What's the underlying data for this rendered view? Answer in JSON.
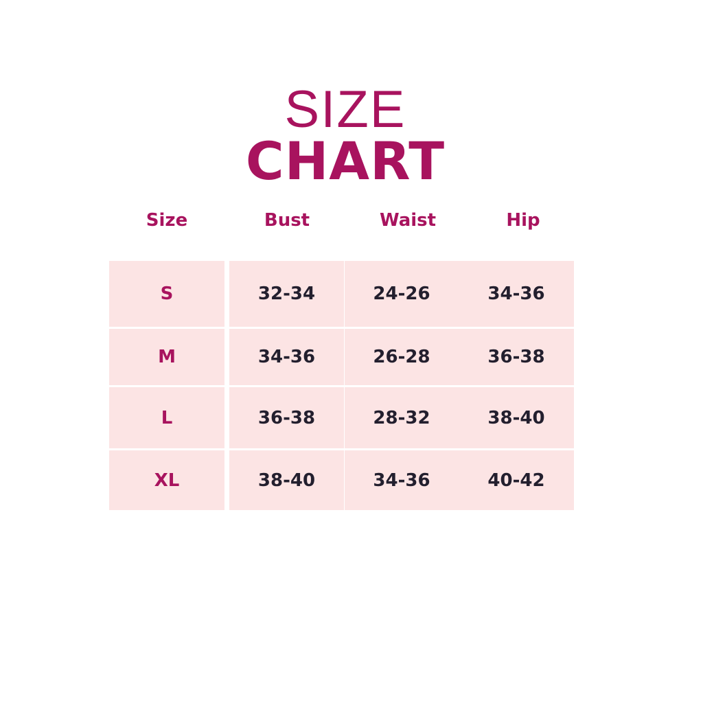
{
  "title": {
    "line1": "SIZE",
    "line2": "CHART"
  },
  "colors": {
    "accent": "#a8135e",
    "cell_bg": "#fce4e4",
    "value_text": "#231f2e"
  },
  "headers": [
    "Size",
    "Bust",
    "Waist",
    "Hip"
  ],
  "rows": [
    [
      "S",
      "32-34",
      "24-26",
      "34-36"
    ],
    [
      "M",
      "34-36",
      "26-28",
      "36-38"
    ],
    [
      "L",
      "36-38",
      "28-32",
      "38-40"
    ],
    [
      "XL",
      "38-40",
      "34-36",
      "40-42"
    ]
  ]
}
